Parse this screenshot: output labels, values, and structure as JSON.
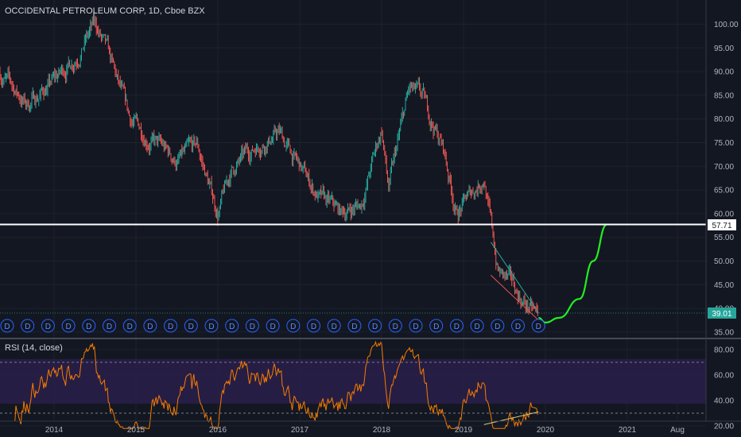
{
  "chart_title": "OCCIDENTAL PETROLEUM CORP, 1D, Cboe BZX",
  "rsi_title": "RSI (14, close)",
  "colors": {
    "background": "#131722",
    "up": "#26a69a",
    "down": "#ef5350",
    "projection": "#22ee22",
    "level_line": "#ffffff",
    "rsi_line": "#f57c00",
    "rsi_band": "#2a1f4a",
    "label_bg": "#26a69a"
  },
  "price_axis_ticks": [
    "100.00",
    "95.00",
    "90.00",
    "85.00",
    "80.00",
    "75.00",
    "70.00",
    "65.00",
    "60.00",
    "55.00",
    "50.00",
    "45.00",
    "40.00",
    "35.00"
  ],
  "rsi_axis_ticks": [
    "80.00",
    "60.00",
    "40.00",
    "20.00"
  ],
  "x_axis_ticks": [
    "2014",
    "2015",
    "2016",
    "2017",
    "2018",
    "2019",
    "2020",
    "2021",
    "Aug"
  ],
  "level_label": "57.71",
  "last_price_label": "39.01",
  "dividend_marker": "D",
  "chart_data": {
    "type": "line",
    "title": "OCCIDENTAL PETROLEUM CORP, 1D, Cboe BZX",
    "x": [
      "2013-05",
      "2013-09",
      "2014-01",
      "2014-04",
      "2014-07",
      "2014-09",
      "2014-12",
      "2015-03",
      "2015-07",
      "2015-10",
      "2016-01",
      "2016-03",
      "2016-07",
      "2016-10",
      "2016-12",
      "2017-04",
      "2017-07",
      "2017-10",
      "2018-01",
      "2018-02",
      "2018-05",
      "2018-07",
      "2018-10",
      "2018-12",
      "2019-04",
      "2019-06",
      "2019-08",
      "2019-10",
      "2019-12"
    ],
    "series": [
      {
        "values": [
          90,
          83,
          88,
          93,
          100,
          93,
          80,
          76,
          71,
          74,
          60,
          69,
          75,
          77,
          72,
          63,
          60,
          62,
          78,
          65,
          86,
          84,
          74,
          60,
          68,
          48,
          45,
          41,
          38
        ]
      }
    ],
    "projection": {
      "x": [
        "2019-12",
        "2020-01",
        "2020-03",
        "2020-06",
        "2020-08",
        "2020-10"
      ],
      "values": [
        38,
        37,
        38,
        42,
        50,
        57.7
      ]
    },
    "horizontal_level": 57.71,
    "last_price": 39.01,
    "ylim": [
      33,
      103
    ],
    "rsi": {
      "ylim": [
        15,
        87
      ],
      "band": [
        30,
        70
      ],
      "ticks": [
        80,
        60,
        40,
        20
      ]
    }
  }
}
